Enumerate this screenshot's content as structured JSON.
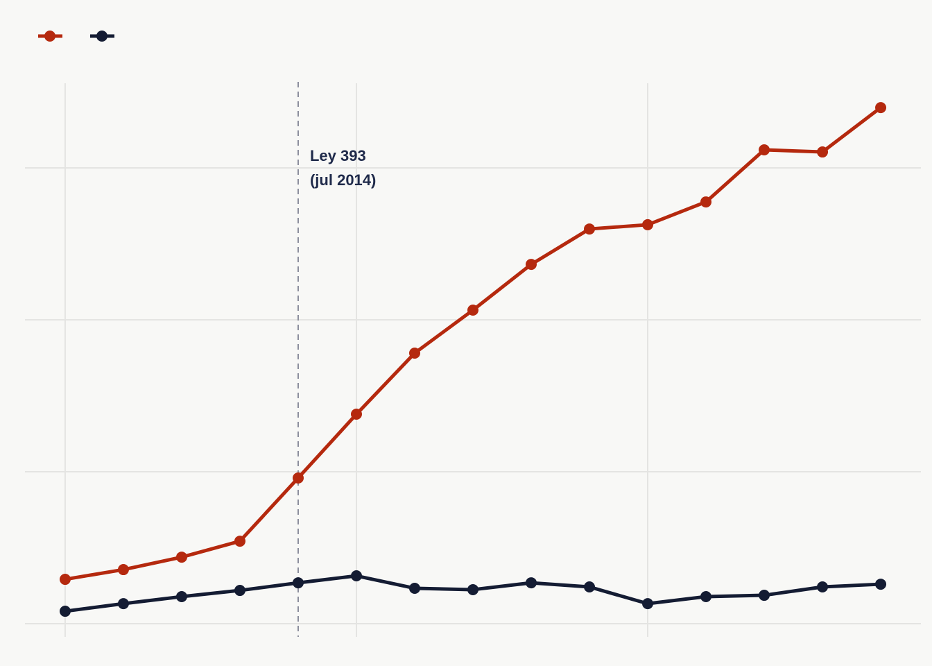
{
  "chart_data": {
    "type": "line",
    "x": [
      0,
      1,
      2,
      3,
      4,
      5,
      6,
      7,
      8,
      9,
      10,
      11,
      12,
      13,
      14
    ],
    "series": [
      {
        "color": "#b5290e",
        "values": [
          29.2,
          35.6,
          43.8,
          54.3,
          95.9,
          137.9,
          178.1,
          206.4,
          236.5,
          259.8,
          262.6,
          277.6,
          311.9,
          310.5,
          339.7
        ]
      },
      {
        "color": "#141c33",
        "values": [
          8.2,
          13.2,
          17.8,
          21.9,
          26.9,
          31.5,
          23.3,
          22.4,
          26.9,
          24.2,
          13.2,
          17.8,
          18.7,
          24.2,
          26.0
        ]
      }
    ],
    "xlim": [
      -0.69,
      14.69
    ],
    "xticks": [
      0,
      5,
      10
    ],
    "ylim": [
      -10,
      356
    ],
    "yticks": [
      0,
      100,
      200,
      300
    ],
    "grid": true,
    "legend": "top-left",
    "annotation": {
      "x": 4,
      "lines": [
        "Ley 393",
        "(jul 2014)"
      ]
    }
  }
}
